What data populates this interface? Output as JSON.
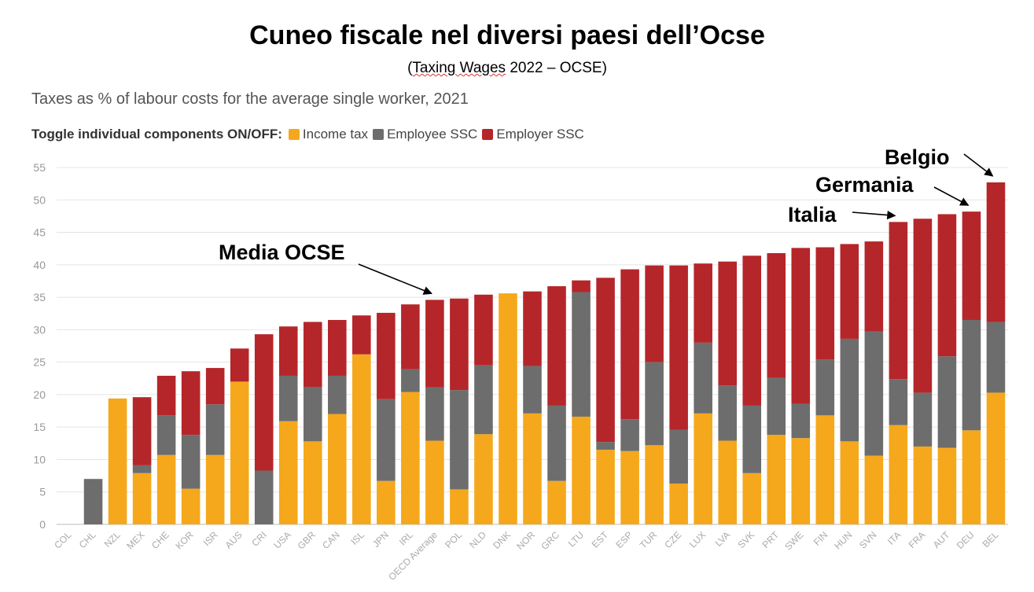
{
  "header": {
    "title": "Cuneo fiscale nel diversi paesi dell’Ocse",
    "subtitle_pre": "(",
    "subtitle_squiggle": "Taxing Wages",
    "subtitle_post": "  2022 – OCSE)"
  },
  "caption": "Taxes as % of labour costs for the average single worker, 2021",
  "legend": {
    "lead": "Toggle individual components ON/OFF:",
    "items": [
      {
        "label": "Income tax",
        "color": "#F5A81C"
      },
      {
        "label": "Employee SSC",
        "color": "#6D6D6D"
      },
      {
        "label": "Employer SSC",
        "color": "#B5262A"
      }
    ]
  },
  "annotations": [
    {
      "text": "Media OCSE",
      "target": "OECD Average"
    },
    {
      "text": "Italia",
      "target": "ITA"
    },
    {
      "text": "Germania",
      "target": "DEU"
    },
    {
      "text": "Belgio",
      "target": "BEL"
    }
  ],
  "chart_data": {
    "type": "bar",
    "stacked": true,
    "title": "Cuneo fiscale nel diversi paesi dell’Ocse",
    "subtitle": "Taxes as % of labour costs for the average single worker, 2021",
    "xlabel": "",
    "ylabel": "",
    "ylim": [
      0,
      55
    ],
    "yticks": [
      0,
      5,
      10,
      15,
      20,
      25,
      30,
      35,
      40,
      45,
      50,
      55
    ],
    "grid": true,
    "legend_position": "top-left",
    "categories": [
      "COL",
      "CHL",
      "NZL",
      "MEX",
      "CHE",
      "KOR",
      "ISR",
      "AUS",
      "CRI",
      "USA",
      "GBR",
      "CAN",
      "ISL",
      "JPN",
      "IRL",
      "OECD Average",
      "POL",
      "NLD",
      "DNK",
      "NOR",
      "GRC",
      "LTU",
      "EST",
      "ESP",
      "TUR",
      "CZE",
      "LUX",
      "LVA",
      "SVK",
      "PRT",
      "SWE",
      "FIN",
      "HUN",
      "SVN",
      "ITA",
      "FRA",
      "AUT",
      "DEU",
      "BEL"
    ],
    "series": [
      {
        "name": "Income tax",
        "color": "#F5A81C",
        "values": [
          0,
          0,
          19.4,
          7.9,
          10.7,
          5.5,
          10.7,
          22.0,
          0,
          15.9,
          12.8,
          17.0,
          26.2,
          6.7,
          20.4,
          12.9,
          5.4,
          13.9,
          35.6,
          17.1,
          6.7,
          16.6,
          11.5,
          11.3,
          12.2,
          6.3,
          17.1,
          12.9,
          7.9,
          13.8,
          13.3,
          16.8,
          12.8,
          10.6,
          15.3,
          12.0,
          11.8,
          14.5,
          20.3
        ]
      },
      {
        "name": "Employee SSC",
        "color": "#6D6D6D",
        "values": [
          0,
          7.0,
          0,
          1.2,
          6.1,
          8.3,
          7.8,
          0,
          8.3,
          7.0,
          8.4,
          5.9,
          0,
          12.6,
          3.5,
          8.2,
          15.3,
          10.6,
          0,
          7.3,
          11.6,
          19.2,
          1.2,
          4.9,
          12.8,
          8.3,
          10.9,
          8.5,
          10.4,
          8.8,
          5.3,
          8.6,
          15.8,
          19.1,
          7.1,
          8.3,
          14.1,
          17.0,
          10.9
        ]
      },
      {
        "name": "Employer SSC",
        "color": "#B5262A",
        "values": [
          0,
          0,
          0,
          10.5,
          6.1,
          9.8,
          5.6,
          5.1,
          21.0,
          7.6,
          10.0,
          8.6,
          6.0,
          13.3,
          10.0,
          13.5,
          14.1,
          10.9,
          0,
          11.5,
          18.4,
          1.8,
          25.3,
          23.1,
          14.9,
          25.3,
          12.2,
          19.1,
          23.1,
          19.2,
          24.0,
          17.3,
          14.6,
          13.9,
          24.2,
          26.8,
          21.9,
          16.7,
          21.5
        ]
      }
    ]
  }
}
